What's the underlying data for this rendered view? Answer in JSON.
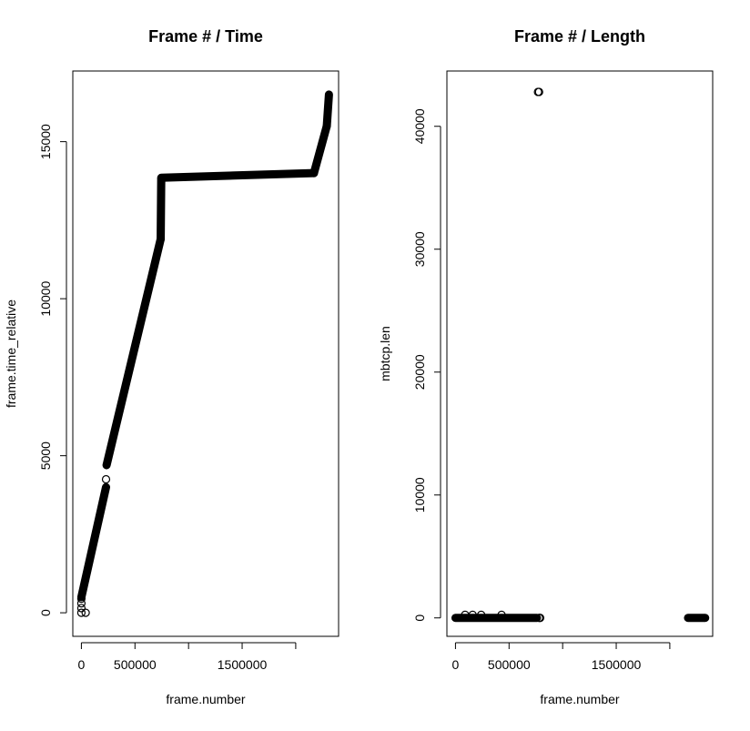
{
  "chart_data": [
    {
      "type": "scatter",
      "title": "Frame # / Time",
      "xlabel": "frame.number",
      "ylabel": "frame.time_relative",
      "xlim": [
        -80000,
        2400000
      ],
      "ylim": [
        -750,
        17250
      ],
      "x_ticks": [
        0,
        500000,
        1000000,
        1500000,
        2000000
      ],
      "x_tick_labels": [
        "0",
        "500000",
        "",
        "1500000",
        ""
      ],
      "y_ticks": [
        0,
        5000,
        10000,
        15000
      ],
      "y_tick_labels": [
        "0",
        "5000",
        "10000",
        "15000"
      ],
      "grid": false,
      "marker": "open-circle",
      "segments": [
        {
          "x": [
            0,
            230000
          ],
          "y": [
            500,
            4000
          ]
        },
        {
          "x": [
            235000,
            740000
          ],
          "y": [
            4700,
            11900
          ]
        },
        {
          "x": [
            740000,
            745000
          ],
          "y": [
            11900,
            13800
          ]
        },
        {
          "x": [
            745000,
            2170000
          ],
          "y": [
            13850,
            14000
          ]
        },
        {
          "x": [
            2170000,
            2290000
          ],
          "y": [
            14000,
            15500
          ]
        },
        {
          "x": [
            2290000,
            2310000
          ],
          "y": [
            15500,
            16500
          ]
        }
      ],
      "points": [
        {
          "x": 0,
          "y": 0
        },
        {
          "x": 0,
          "y": 150
        },
        {
          "x": 0,
          "y": 300
        },
        {
          "x": 0,
          "y": 450
        },
        {
          "x": 40000,
          "y": 0
        },
        {
          "x": 230000,
          "y": 4250
        }
      ]
    },
    {
      "type": "scatter",
      "title": "Frame # / Length",
      "xlabel": "frame.number",
      "ylabel": "mbtcp.len",
      "xlim": [
        -80000,
        2400000
      ],
      "ylim": [
        -1500,
        44500
      ],
      "x_ticks": [
        0,
        500000,
        1000000,
        1500000,
        2000000
      ],
      "x_tick_labels": [
        "0",
        "500000",
        "",
        "1500000",
        ""
      ],
      "y_ticks": [
        0,
        10000,
        20000,
        30000,
        40000
      ],
      "y_tick_labels": [
        "0",
        "10000",
        "20000",
        "30000",
        "40000"
      ],
      "grid": false,
      "marker": "open-circle",
      "segments": [
        {
          "x": [
            0,
            760000
          ],
          "y": [
            0,
            0
          ]
        },
        {
          "x": [
            2170000,
            2330000
          ],
          "y": [
            0,
            0
          ]
        }
      ],
      "points": [
        {
          "x": 90000,
          "y": 250
        },
        {
          "x": 160000,
          "y": 250
        },
        {
          "x": 240000,
          "y": 250
        },
        {
          "x": 430000,
          "y": 250
        },
        {
          "x": 780000,
          "y": 0
        },
        {
          "x": 790000,
          "y": 0
        },
        {
          "x": 770000,
          "y": 42800
        },
        {
          "x": 780000,
          "y": 42800
        }
      ]
    }
  ]
}
